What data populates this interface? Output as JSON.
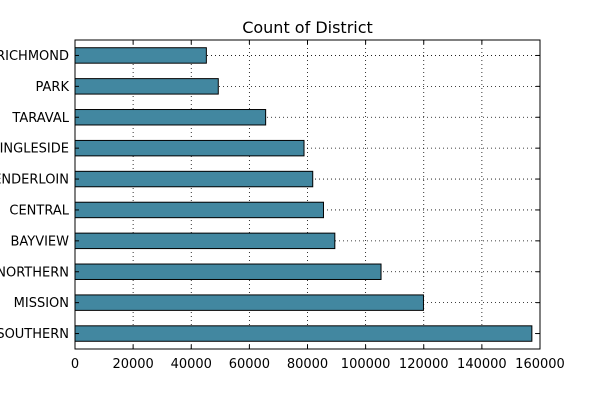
{
  "chart_data": {
    "type": "bar",
    "orientation": "horizontal",
    "title": "Count of District",
    "xlabel": "",
    "ylabel": "",
    "categories": [
      "SOUTHERN",
      "MISSION",
      "NORTHERN",
      "BAYVIEW",
      "CENTRAL",
      "TENDERLOIN",
      "INGLESIDE",
      "TARAVAL",
      "PARK",
      "RICHMOND"
    ],
    "values": [
      157200,
      119900,
      105300,
      89400,
      85500,
      81800,
      78800,
      65600,
      49300,
      45200
    ],
    "xlim": [
      0,
      160000
    ],
    "xticks": [
      0,
      20000,
      40000,
      60000,
      80000,
      100000,
      120000,
      140000,
      160000
    ],
    "xtick_labels": [
      "0",
      "20000",
      "40000",
      "60000",
      "80000",
      "100000",
      "120000",
      "140000",
      "160000"
    ],
    "bar_color": "#4287a0",
    "grid": true,
    "legend": "none"
  }
}
